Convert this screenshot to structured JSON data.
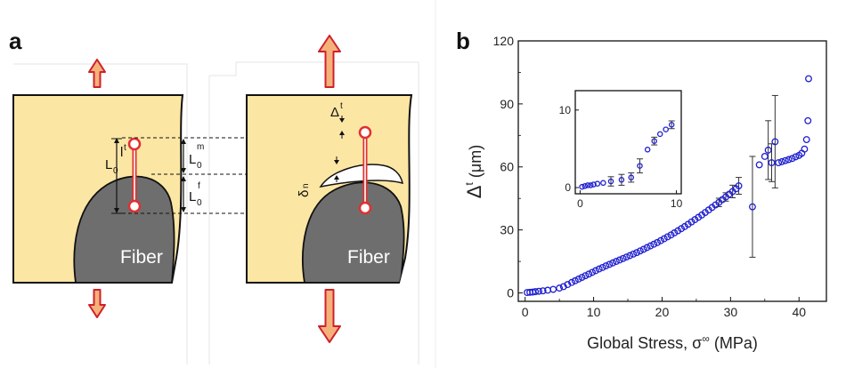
{
  "panel_a": {
    "letter": "a",
    "fiber_label": "Fiber",
    "label_l": "l",
    "label_l_sup": "t",
    "label_L0": "L",
    "label_L0_sub": "0",
    "label_m": "m",
    "label_f": "f",
    "label_delta_t": "Δ",
    "label_delta_t_sup": "t",
    "label_delta_n": "δ",
    "label_delta_n_sup": "n",
    "colors": {
      "matrix": "#fce6a4",
      "fiber": "#6e6e6e",
      "arrow_fill": "#f4b27a",
      "arrow_stroke": "#d0202a",
      "gauge": "#e03030"
    }
  },
  "chart_data": [
    {
      "type": "scatter",
      "panel_letter": "b",
      "xlabel": "Global Stress, σ",
      "xlabel_sup": "∞",
      "xlabel_unit": "(MPa)",
      "ylabel": "Δ",
      "ylabel_sup": "t",
      "ylabel_unit": "(μm)",
      "xlim": [
        -1,
        44
      ],
      "ylim": [
        -4,
        120
      ],
      "xticks": [
        0,
        10,
        20,
        30,
        40
      ],
      "yticks": [
        0,
        30,
        60,
        90,
        120
      ],
      "marker_color": "#1f1fd0",
      "grid": false,
      "x": [
        0.3,
        0.7,
        1.1,
        1.5,
        2.0,
        2.6,
        3.3,
        4.1,
        5.0,
        5.6,
        6.2,
        6.8,
        7.3,
        7.8,
        8.3,
        8.8,
        9.3,
        9.8,
        10.3,
        10.8,
        11.3,
        11.8,
        12.3,
        12.8,
        13.3,
        13.8,
        14.3,
        14.8,
        15.3,
        15.8,
        16.3,
        16.8,
        17.3,
        17.8,
        18.3,
        18.8,
        19.3,
        19.8,
        20.3,
        20.8,
        21.3,
        21.8,
        22.3,
        22.8,
        23.3,
        23.8,
        24.3,
        24.8,
        25.3,
        25.8,
        26.3,
        26.8,
        27.3,
        27.8,
        28.3,
        28.8,
        29.3,
        29.8,
        30.3,
        30.8,
        31.2,
        33.2,
        34.2,
        35.0,
        35.5,
        36.0,
        36.5,
        37.0,
        37.5,
        38.0,
        38.5,
        39.0,
        39.5,
        40.0,
        40.4,
        40.8,
        41.1,
        41.3,
        41.4
      ],
      "y": [
        0.2,
        0.3,
        0.4,
        0.6,
        0.8,
        1.0,
        1.3,
        1.7,
        2.3,
        3.0,
        4.0,
        5.0,
        5.8,
        6.6,
        7.4,
        8.2,
        9.0,
        9.8,
        10.6,
        11.4,
        12.1,
        12.9,
        13.6,
        14.3,
        15.0,
        15.7,
        16.4,
        17.1,
        17.8,
        18.5,
        19.2,
        20.0,
        20.8,
        21.6,
        22.4,
        23.2,
        24.0,
        24.9,
        25.8,
        26.7,
        27.6,
        28.6,
        29.6,
        30.6,
        31.6,
        32.7,
        33.8,
        34.9,
        36.0,
        37.1,
        38.3,
        39.5,
        40.7,
        41.9,
        43.1,
        44.4,
        45.7,
        47.0,
        48.3,
        49.6,
        51.0,
        41.0,
        61.0,
        65.0,
        68.0,
        62.0,
        72.0,
        62.0,
        62.5,
        63.0,
        63.5,
        64.0,
        64.8,
        65.5,
        66.5,
        68.5,
        73.0,
        82.0,
        102.0
      ],
      "error_bars": [
        {
          "x": 33.2,
          "y": 41.0,
          "err": 24
        },
        {
          "x": 35.5,
          "y": 68.0,
          "err": 14
        },
        {
          "x": 36.0,
          "y": 62.0,
          "err": 9
        },
        {
          "x": 36.5,
          "y": 72.0,
          "err": 22
        },
        {
          "x": 31.2,
          "y": 51.0,
          "err": 4
        },
        {
          "x": 30.3,
          "y": 48.3,
          "err": 3
        },
        {
          "x": 29.3,
          "y": 45.7,
          "err": 2
        },
        {
          "x": 28.3,
          "y": 43.1,
          "err": 2
        }
      ]
    },
    {
      "type": "scatter",
      "role": "inset",
      "xlim": [
        -0.5,
        10.5
      ],
      "ylim": [
        -0.8,
        12.5
      ],
      "xticks": [
        0,
        10
      ],
      "yticks": [
        0,
        10
      ],
      "marker_color": "#1f1fd0",
      "x": [
        0.2,
        0.5,
        0.8,
        1.1,
        1.4,
        1.8,
        2.4,
        3.2,
        4.3,
        5.3,
        6.2,
        7.0,
        7.7,
        8.3,
        8.9,
        9.5
      ],
      "y": [
        0.1,
        0.2,
        0.3,
        0.3,
        0.4,
        0.5,
        0.6,
        0.8,
        1.0,
        1.3,
        2.8,
        4.9,
        6.0,
        6.9,
        7.5,
        8.1
      ],
      "error_bars": [
        {
          "x": 3.2,
          "y": 0.8,
          "err": 0.6
        },
        {
          "x": 4.3,
          "y": 1.0,
          "err": 0.7
        },
        {
          "x": 5.3,
          "y": 1.3,
          "err": 0.6
        },
        {
          "x": 6.2,
          "y": 2.8,
          "err": 0.9
        },
        {
          "x": 7.7,
          "y": 6.0,
          "err": 0.5
        },
        {
          "x": 9.5,
          "y": 8.1,
          "err": 0.5
        }
      ]
    }
  ]
}
